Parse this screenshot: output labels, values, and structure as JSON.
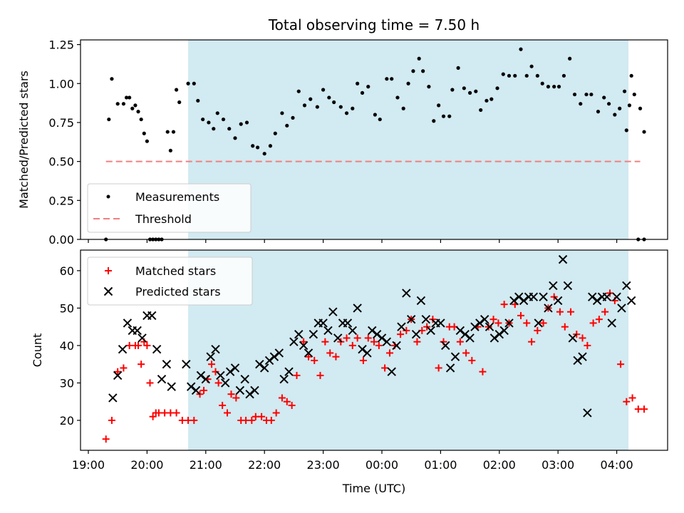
{
  "chart_data": [
    {
      "type": "scatter",
      "title": "Total observing time = 7.50 h",
      "xlabel": "",
      "ylabel": "Matched/Predicted stars",
      "ylim": [
        0,
        1.28
      ],
      "yticks": [
        "0.00",
        "0.25",
        "0.50",
        "0.75",
        "1.00",
        "1.25"
      ],
      "legend_placement": "lower-left",
      "grid": false,
      "observing_window": {
        "start": "20:42",
        "end": "04:12",
        "color": "#add8e6"
      },
      "threshold": {
        "name": "Threshold",
        "value": 0.5,
        "x_start": "19:18",
        "x_end": "04:24",
        "color": "#f08080",
        "style": "dashed"
      },
      "series": [
        {
          "name": "Measurements",
          "marker": "dot",
          "color": "#000000",
          "x": [
            "19:18",
            "19:21",
            "19:24",
            "19:30",
            "19:36",
            "19:39",
            "19:42",
            "19:45",
            "19:48",
            "19:51",
            "19:54",
            "19:57",
            "20:00",
            "20:03",
            "20:06",
            "20:09",
            "20:12",
            "20:15",
            "20:21",
            "20:24",
            "20:27",
            "20:30",
            "20:33",
            "20:42",
            "20:48",
            "20:52",
            "20:57",
            "21:03",
            "21:08",
            "21:12",
            "21:18",
            "21:24",
            "21:30",
            "21:36",
            "21:42",
            "21:48",
            "21:53",
            "22:00",
            "22:06",
            "22:11",
            "22:18",
            "22:23",
            "22:29",
            "22:35",
            "22:41",
            "22:47",
            "22:54",
            "23:00",
            "23:06",
            "23:11",
            "23:18",
            "23:24",
            "23:30",
            "23:35",
            "23:40",
            "23:46",
            "23:53",
            "23:58",
            "24:05",
            "24:10",
            "24:16",
            "24:22",
            "24:27",
            "24:32",
            "24:38",
            "24:42",
            "24:48",
            "24:53",
            "24:58",
            "25:03",
            "25:09",
            "25:12",
            "25:18",
            "25:24",
            "25:30",
            "25:36",
            "25:41",
            "25:47",
            "25:52",
            "25:58",
            "26:04",
            "26:10",
            "26:16",
            "26:22",
            "26:28",
            "26:33",
            "26:39",
            "26:44",
            "26:50",
            "26:56",
            "27:01",
            "27:06",
            "27:12",
            "27:17",
            "27:23",
            "27:29",
            "27:34",
            "27:41",
            "27:47",
            "27:52",
            "27:58",
            "28:03",
            "28:08",
            "28:13",
            "28:18",
            "28:24",
            "28:28"
          ],
          "y": [
            0.0,
            0.77,
            1.03,
            0.87,
            0.87,
            0.91,
            0.91,
            0.84,
            0.86,
            0.82,
            0.77,
            0.68,
            0.63,
            0.0,
            0.0,
            0.0,
            0.0,
            0.0,
            0.69,
            0.57,
            0.69,
            0.96,
            0.88,
            1.0,
            1.0,
            0.89,
            0.77,
            0.75,
            0.71,
            0.81,
            0.77,
            0.71,
            0.65,
            0.74,
            0.75,
            0.6,
            0.59,
            0.55,
            0.6,
            0.68,
            0.81,
            0.73,
            0.78,
            0.95,
            0.86,
            0.9,
            0.85,
            0.96,
            0.91,
            0.88,
            0.85,
            0.81,
            0.84,
            1.0,
            0.94,
            0.98,
            0.8,
            0.77,
            1.03,
            1.03,
            0.91,
            0.84,
            1.0,
            1.08,
            1.16,
            1.08,
            0.98,
            0.76,
            0.86,
            0.79,
            0.79,
            0.96,
            1.1,
            0.97,
            0.94,
            0.95,
            0.83,
            0.89,
            0.9,
            0.97,
            1.06,
            1.05,
            1.05,
            1.22,
            1.05,
            1.11,
            1.05,
            1.0,
            0.98,
            0.98,
            0.98,
            1.05,
            1.16,
            0.93,
            0.87,
            0.93,
            0.93,
            0.82,
            0.91,
            0.87,
            0.8,
            0.84,
            0.95,
            0.86,
            0.93,
            0.84,
            0.69
          ]
        }
      ],
      "extra_points": {
        "x": [
          "28:10",
          "28:15",
          "28:22",
          "28:28"
        ],
        "y": [
          0.7,
          1.05,
          0.0,
          0.0
        ]
      }
    },
    {
      "type": "scatter",
      "title": "",
      "xlabel": "Time (UTC)",
      "ylabel": "Count",
      "ylim": [
        12,
        65.5
      ],
      "yticks": [
        "20",
        "30",
        "40",
        "50",
        "60"
      ],
      "xticks": [
        "19:00",
        "20:00",
        "21:00",
        "22:00",
        "23:00",
        "00:00",
        "01:00",
        "02:00",
        "03:00",
        "04:00"
      ],
      "legend_placement": "upper-left",
      "grid": false,
      "observing_window": {
        "start": "20:42",
        "end": "04:12",
        "color": "#add8e6"
      },
      "series": [
        {
          "name": "Matched stars",
          "marker": "plus",
          "color": "#ff0000",
          "x": [
            "19:18",
            "19:24",
            "19:30",
            "19:36",
            "19:42",
            "19:48",
            "19:51",
            "19:54",
            "19:57",
            "20:00",
            "20:03",
            "20:06",
            "20:09",
            "20:12",
            "20:18",
            "20:24",
            "20:30",
            "20:36",
            "20:42",
            "20:48",
            "20:54",
            "20:58",
            "21:02",
            "21:06",
            "21:10",
            "21:13",
            "21:17",
            "21:22",
            "21:26",
            "21:31",
            "21:36",
            "21:41",
            "21:47",
            "21:51",
            "21:57",
            "22:02",
            "22:07",
            "22:12",
            "22:18",
            "22:23",
            "22:28",
            "22:33",
            "22:40",
            "22:45",
            "22:51",
            "22:57",
            "23:02",
            "23:07",
            "23:13",
            "23:18",
            "23:24",
            "23:30",
            "23:35",
            "23:41",
            "23:46",
            "23:52",
            "23:57",
            "24:03",
            "24:08",
            "24:13",
            "24:19",
            "24:25",
            "24:30",
            "24:36",
            "24:41",
            "24:46",
            "24:52",
            "24:58",
            "25:03",
            "25:09",
            "25:14",
            "25:20",
            "25:26",
            "25:32",
            "25:38",
            "25:43",
            "25:49",
            "25:54",
            "25:59",
            "26:05",
            "26:10",
            "26:16",
            "26:22",
            "26:28",
            "26:33",
            "26:39",
            "26:45",
            "26:50",
            "26:56",
            "27:02",
            "27:07",
            "27:13",
            "27:19",
            "27:25",
            "27:30",
            "27:36",
            "27:42",
            "27:48",
            "27:53",
            "27:58",
            "28:04",
            "28:10",
            "28:16",
            "28:22",
            "28:28"
          ],
          "y": [
            15,
            20,
            33,
            34,
            40,
            40,
            40,
            35,
            41,
            40,
            30,
            21,
            22,
            22,
            22,
            22,
            22,
            20,
            20,
            20,
            27,
            28,
            31,
            35,
            33,
            30,
            24,
            22,
            27,
            26,
            20,
            20,
            20,
            21,
            21,
            20,
            20,
            22,
            26,
            25,
            24,
            32,
            41,
            37,
            36,
            32,
            41,
            38,
            37,
            41,
            42,
            40,
            42,
            36,
            42,
            41,
            40,
            34,
            38,
            40,
            43,
            44,
            47,
            41,
            44,
            45,
            47,
            34,
            41,
            45,
            45,
            41,
            38,
            36,
            45,
            33,
            45,
            47,
            46,
            51,
            46,
            51,
            48,
            46,
            41,
            44,
            46,
            50,
            53,
            49,
            45,
            49,
            43,
            42,
            40,
            46,
            47,
            49,
            54,
            52,
            35,
            25,
            26,
            23,
            23
          ]
        },
        {
          "name": "Predicted stars",
          "marker": "x",
          "color": "#000000",
          "x": [
            "19:25",
            "19:30",
            "19:35",
            "19:40",
            "19:45",
            "19:50",
            "19:55",
            "20:00",
            "20:05",
            "20:10",
            "20:15",
            "20:20",
            "20:25",
            "20:40",
            "20:45",
            "20:50",
            "20:55",
            "21:00",
            "21:05",
            "21:10",
            "21:15",
            "21:20",
            "21:25",
            "21:30",
            "21:35",
            "21:40",
            "21:45",
            "21:50",
            "21:55",
            "22:00",
            "22:05",
            "22:10",
            "22:15",
            "22:20",
            "22:25",
            "22:30",
            "22:35",
            "22:40",
            "22:45",
            "22:50",
            "22:55",
            "23:00",
            "23:05",
            "23:10",
            "23:15",
            "23:20",
            "23:25",
            "23:30",
            "23:35",
            "23:40",
            "23:45",
            "23:50",
            "23:55",
            "24:00",
            "24:05",
            "24:10",
            "24:15",
            "24:20",
            "24:25",
            "24:30",
            "24:35",
            "24:40",
            "24:45",
            "24:50",
            "24:55",
            "25:00",
            "25:05",
            "25:10",
            "25:15",
            "25:20",
            "25:25",
            "25:30",
            "25:35",
            "25:40",
            "25:45",
            "25:50",
            "25:55",
            "26:00",
            "26:05",
            "26:10",
            "26:15",
            "26:20",
            "26:25",
            "26:30",
            "26:35",
            "26:40",
            "26:45",
            "26:50",
            "26:55",
            "27:00",
            "27:05",
            "27:10",
            "27:15",
            "27:20",
            "27:25",
            "27:30",
            "27:35",
            "27:40",
            "27:45",
            "27:50",
            "27:55",
            "28:00",
            "28:05",
            "28:10",
            "28:15"
          ],
          "y": [
            26,
            32,
            39,
            46,
            44,
            44,
            42,
            48,
            48,
            39,
            31,
            35,
            29,
            35,
            29,
            28,
            32,
            31,
            37,
            39,
            32,
            30,
            33,
            34,
            28,
            31,
            27,
            28,
            35,
            34,
            36,
            37,
            38,
            31,
            33,
            41,
            43,
            40,
            38,
            43,
            46,
            46,
            44,
            49,
            42,
            46,
            46,
            44,
            50,
            39,
            38,
            44,
            43,
            42,
            41,
            33,
            40,
            45,
            54,
            47,
            43,
            52,
            47,
            44,
            46,
            46,
            40,
            34,
            37,
            44,
            43,
            42,
            45,
            46,
            47,
            45,
            42,
            43,
            44,
            46,
            52,
            53,
            52,
            53,
            53,
            46,
            53,
            50,
            56,
            52,
            63,
            56,
            42,
            36,
            37,
            22,
            53,
            52,
            53,
            53,
            46,
            53,
            50,
            56,
            52
          ]
        }
      ]
    }
  ]
}
